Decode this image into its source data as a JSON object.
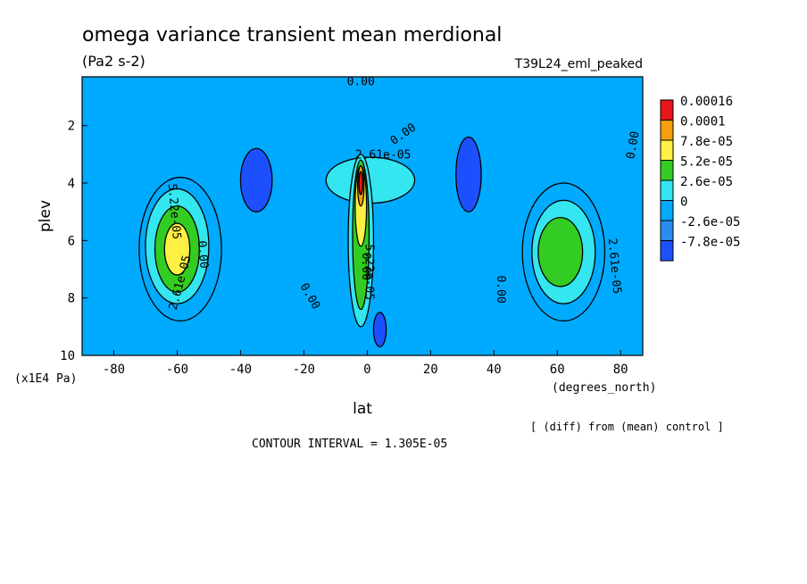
{
  "chart_data": {
    "type": "heatmap",
    "title": "omega variance transient mean merdional",
    "units": "(Pa2 s-2)",
    "run_label": "T39L24_eml_peaked",
    "xlabel": "lat",
    "x_units": "(degrees_north)",
    "ylabel": "plev",
    "y_units": "(x1E4 Pa)",
    "footer_diff": "[ (diff) from (mean) control ]",
    "contour_interval": "CONTOUR INTERVAL = 1.305E-05",
    "xlim": [
      -90,
      87
    ],
    "ylim": [
      10,
      0.3
    ],
    "x_ticks": [
      "-80",
      "-60",
      "-40",
      "-20",
      "0",
      "20",
      "40",
      "60",
      "80"
    ],
    "x_tick_values": [
      -80,
      -60,
      -40,
      -20,
      0,
      20,
      40,
      60,
      80
    ],
    "y_ticks": [
      "2",
      "4",
      "6",
      "8",
      "10"
    ],
    "y_tick_values": [
      2,
      4,
      6,
      8,
      10
    ],
    "colorbar": {
      "labels": [
        "0.00016",
        "0.0001",
        "7.8e-05",
        "5.2e-05",
        "2.6e-05",
        "0",
        "-2.6e-05",
        "-7.8e-05"
      ],
      "colors": [
        "#e8161a",
        "#f5a00a",
        "#fff044",
        "#33cc22",
        "#33e6f0",
        "#00aaff",
        "#2a8cf0",
        "#1c50ff"
      ]
    },
    "contour_labels": [
      {
        "text": "0.00",
        "x": -2,
        "y": 0.6,
        "rot": 0
      },
      {
        "text": "0.00",
        "x": 12,
        "y": 2.4,
        "rot": -35
      },
      {
        "text": "2.61e-05",
        "x": 5,
        "y": 3.15,
        "rot": 0
      },
      {
        "text": "0.00",
        "x": 85,
        "y": 2.7,
        "rot": -80
      },
      {
        "text": "5.22e-05",
        "x": -62,
        "y": 5.0,
        "rot": 85
      },
      {
        "text": "0.00",
        "x": -53,
        "y": 6.5,
        "rot": 85
      },
      {
        "text": "2.61e-05",
        "x": -58,
        "y": 7.5,
        "rot": -75
      },
      {
        "text": "0.00",
        "x": -19,
        "y": 8.0,
        "rot": 60
      },
      {
        "text": "0.00",
        "x": 41,
        "y": 7.7,
        "rot": 90
      },
      {
        "text": "2.61e-05",
        "x": 77,
        "y": 6.9,
        "rot": 85
      },
      {
        "text": "5.22e-05",
        "x": -0.5,
        "y": 7.1,
        "rot": 90
      },
      {
        "text": "0.00",
        "x": -1.5,
        "y": 6.9,
        "rot": 90
      }
    ],
    "features": [
      {
        "kind": "ellipse",
        "level": 5,
        "cx": -59,
        "cy": 6.3,
        "rx": 13,
        "ry": 2.5
      },
      {
        "kind": "ellipse",
        "level": 4,
        "cx": -60,
        "cy": 6.2,
        "rx": 10,
        "ry": 2.0
      },
      {
        "kind": "ellipse",
        "level": 3,
        "cx": -60,
        "cy": 6.3,
        "rx": 7,
        "ry": 1.5
      },
      {
        "kind": "ellipse",
        "level": 2,
        "cx": -60,
        "cy": 6.3,
        "rx": 4,
        "ry": 0.9
      },
      {
        "kind": "ellipse",
        "level": 5,
        "cx": 62,
        "cy": 6.4,
        "rx": 13,
        "ry": 2.4
      },
      {
        "kind": "ellipse",
        "level": 4,
        "cx": 62,
        "cy": 6.4,
        "rx": 10,
        "ry": 1.8
      },
      {
        "kind": "ellipse",
        "level": 3,
        "cx": 61,
        "cy": 6.4,
        "rx": 7,
        "ry": 1.2
      },
      {
        "kind": "ellipse",
        "level": 4,
        "cx": 1,
        "cy": 3.9,
        "rx": 14,
        "ry": 0.8
      },
      {
        "kind": "ellipse",
        "level": 4,
        "cx": -2,
        "cy": 6.0,
        "rx": 4,
        "ry": 3.0
      },
      {
        "kind": "ellipse",
        "level": 3,
        "cx": -2,
        "cy": 5.8,
        "rx": 2.6,
        "ry": 2.6
      },
      {
        "kind": "ellipse",
        "level": 2,
        "cx": -2,
        "cy": 4.8,
        "rx": 1.8,
        "ry": 1.4
      },
      {
        "kind": "ellipse",
        "level": 1,
        "cx": -2,
        "cy": 4.1,
        "rx": 1.0,
        "ry": 0.7
      },
      {
        "kind": "ellipse",
        "level": 0,
        "cx": -2,
        "cy": 4.0,
        "rx": 0.6,
        "ry": 0.4
      },
      {
        "kind": "ellipse",
        "level": 7,
        "cx": -35,
        "cy": 3.9,
        "rx": 5,
        "ry": 1.1
      },
      {
        "kind": "ellipse",
        "level": 7,
        "cx": 32,
        "cy": 3.7,
        "rx": 4,
        "ry": 1.3
      },
      {
        "kind": "ellipse",
        "level": 7,
        "cx": 4,
        "cy": 9.1,
        "rx": 2,
        "ry": 0.6
      }
    ]
  }
}
